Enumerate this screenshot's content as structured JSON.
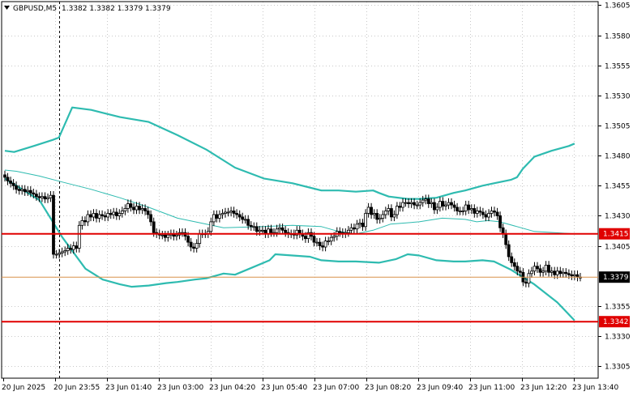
{
  "header": {
    "symbol": "GBPUSD,M5",
    "ohlc": "1.3382 1.3382 1.3379 1.3379"
  },
  "colors": {
    "background": "#ffffff",
    "grid": "#c8c8c8",
    "bands": "#2ebbb0",
    "candle": "#000000",
    "level_line": "#e00000",
    "current_price_line": "#d9924a"
  },
  "chart_data": {
    "type": "candlestick",
    "symbol": "GBPUSD",
    "timeframe": "M5",
    "ylim": [
      1.3295,
      1.3608
    ],
    "y_ticks": [
      "1.3605",
      "1.3580",
      "1.3555",
      "1.3530",
      "1.3505",
      "1.3480",
      "1.3455",
      "1.3430",
      "1.3405",
      "1.3355",
      "1.3330",
      "1.3305"
    ],
    "x_ticks": [
      "20 Jun 2025",
      "20 Jun 23:55",
      "23 Jun 01:40",
      "23 Jun 03:00",
      "23 Jun 04:20",
      "23 Jun 05:40",
      "23 Jun 07:00",
      "23 Jun 08:20",
      "23 Jun 09:40",
      "23 Jun 11:00",
      "23 Jun 12:20",
      "23 Jun 13:40"
    ],
    "grid": true,
    "session_separator": "20 Jun 23:55",
    "horizontal_levels": [
      {
        "label": "1.3415",
        "value": 1.3415,
        "color": "#e00000"
      },
      {
        "label": "1.3342",
        "value": 1.3342,
        "color": "#e00000"
      }
    ],
    "current_price": {
      "label": "1.3379",
      "value": 1.3379
    },
    "close_series": [
      1.3462,
      1.3459,
      1.3457,
      1.3455,
      1.3452,
      1.3451,
      1.3452,
      1.345,
      1.3451,
      1.3449,
      1.3448,
      1.3446,
      1.3445,
      1.3446,
      1.3444,
      1.3445,
      1.3447,
      1.3398,
      1.3398,
      1.3399,
      1.34,
      1.3401,
      1.3403,
      1.3402,
      1.3405,
      1.3403,
      1.3422,
      1.3426,
      1.3425,
      1.3431,
      1.3429,
      1.3432,
      1.3428,
      1.3431,
      1.343,
      1.3429,
      1.3432,
      1.3431,
      1.3433,
      1.343,
      1.3432,
      1.3434,
      1.3436,
      1.344,
      1.3437,
      1.3435,
      1.3438,
      1.3435,
      1.3436,
      1.3434,
      1.3431,
      1.3425,
      1.3416,
      1.3415,
      1.3414,
      1.3414,
      1.3412,
      1.3414,
      1.3415,
      1.3413,
      1.3414,
      1.3416,
      1.3416,
      1.3413,
      1.3408,
      1.3404,
      1.3403,
      1.3407,
      1.3415,
      1.3415,
      1.3415,
      1.3417,
      1.3425,
      1.3431,
      1.3428,
      1.3431,
      1.3432,
      1.3433,
      1.3433,
      1.3434,
      1.3432,
      1.3431,
      1.3429,
      1.3427,
      1.3427,
      1.3422,
      1.3421,
      1.3421,
      1.3417,
      1.3418,
      1.3418,
      1.3415,
      1.3419,
      1.3416,
      1.3416,
      1.3419,
      1.342,
      1.3418,
      1.3416,
      1.3415,
      1.3415,
      1.3414,
      1.3418,
      1.3415,
      1.3413,
      1.3411,
      1.3416,
      1.3413,
      1.3408,
      1.3408,
      1.3405,
      1.3404,
      1.3409,
      1.3409,
      1.3412,
      1.3413,
      1.3417,
      1.3416,
      1.3415,
      1.3416,
      1.3418,
      1.342,
      1.3419,
      1.3423,
      1.3424,
      1.3421,
      1.3432,
      1.3437,
      1.3431,
      1.3432,
      1.3427,
      1.3428,
      1.3431,
      1.3434,
      1.3436,
      1.3429,
      1.3431,
      1.3438,
      1.3437,
      1.3441,
      1.3441,
      1.344,
      1.3441,
      1.3439,
      1.3439,
      1.3441,
      1.3443,
      1.3444,
      1.344,
      1.3441,
      1.3435,
      1.3437,
      1.3442,
      1.3438,
      1.3439,
      1.3441,
      1.3439,
      1.3437,
      1.3434,
      1.3434,
      1.3434,
      1.3439,
      1.3435,
      1.3436,
      1.3432,
      1.3434,
      1.3433,
      1.3431,
      1.3429,
      1.3432,
      1.3434,
      1.3433,
      1.343,
      1.342,
      1.3415,
      1.3406,
      1.3396,
      1.3391,
      1.3388,
      1.3384,
      1.3383,
      1.3375,
      1.3374,
      1.3382,
      1.3384,
      1.3388,
      1.3386,
      1.3383,
      1.3384,
      1.3389,
      1.3383,
      1.3384,
      1.3381,
      1.3384,
      1.3382,
      1.3383,
      1.3382,
      1.3381,
      1.338,
      1.3381,
      1.3379,
      1.3379
    ],
    "bands": {
      "upper": [
        [
          1.3484,
          1.3483,
          1.3488,
          1.3493,
          1.3495,
          1.352,
          1.3518,
          1.3512,
          1.3508,
          1.3497,
          1.3485,
          1.347,
          1.3461,
          1.3457,
          1.3451,
          1.3451,
          1.345,
          1.3451,
          1.3449,
          1.3446,
          1.3444,
          1.3444,
          1.3445,
          1.3449,
          1.3451,
          1.3455,
          1.3457,
          1.346,
          1.3462,
          1.3469,
          1.3479,
          1.3484,
          1.3488,
          1.349
        ],
        [
          0,
          0.016,
          0.05,
          0.083,
          0.094,
          0.117,
          0.15,
          0.2,
          0.25,
          0.3,
          0.35,
          0.4,
          0.45,
          0.5,
          0.55,
          0.58,
          0.61,
          0.64,
          0.65,
          0.667,
          0.7,
          0.72,
          0.75,
          0.78,
          0.8,
          0.83,
          0.85,
          0.88,
          0.89,
          0.9,
          0.92,
          0.95,
          0.98,
          0.99
        ]
      ],
      "middle": [
        [
          1.3468,
          1.3467,
          1.3463,
          1.3458,
          1.3452,
          1.3445,
          1.3437,
          1.3428,
          1.3423,
          1.342,
          1.3421,
          1.3422,
          1.3421,
          1.3417,
          1.3415,
          1.3418,
          1.3423,
          1.3425,
          1.3428,
          1.3427,
          1.3425,
          1.3426,
          1.3425,
          1.3417,
          1.3415
        ],
        [
          0,
          0.02,
          0.06,
          0.1,
          0.15,
          0.2,
          0.25,
          0.3,
          0.35,
          0.38,
          0.45,
          0.5,
          0.55,
          0.58,
          0.61,
          0.64,
          0.67,
          0.72,
          0.76,
          0.8,
          0.82,
          0.84,
          0.86,
          0.92,
          0.99
        ]
      ],
      "lower": [
        [
          1.3461,
          1.3452,
          1.3443,
          1.3412,
          1.3386,
          1.3377,
          1.3373,
          1.3371,
          1.3372,
          1.3374,
          1.3375,
          1.3377,
          1.3378,
          1.3382,
          1.3381,
          1.3387,
          1.3393,
          1.3398,
          1.3397,
          1.3396,
          1.3393,
          1.3392,
          1.3392,
          1.3391,
          1.3394,
          1.3398,
          1.3397,
          1.3393,
          1.3392,
          1.3392,
          1.3393,
          1.3392,
          1.3385,
          1.3373,
          1.3358,
          1.3343
        ],
        [
          0,
          0.03,
          0.06,
          0.1,
          0.14,
          0.17,
          0.2,
          0.22,
          0.25,
          0.28,
          0.3,
          0.33,
          0.35,
          0.38,
          0.4,
          0.43,
          0.46,
          0.47,
          0.5,
          0.53,
          0.55,
          0.58,
          0.61,
          0.65,
          0.68,
          0.7,
          0.72,
          0.75,
          0.78,
          0.8,
          0.83,
          0.85,
          0.88,
          0.92,
          0.96,
          0.99
        ]
      ]
    }
  }
}
